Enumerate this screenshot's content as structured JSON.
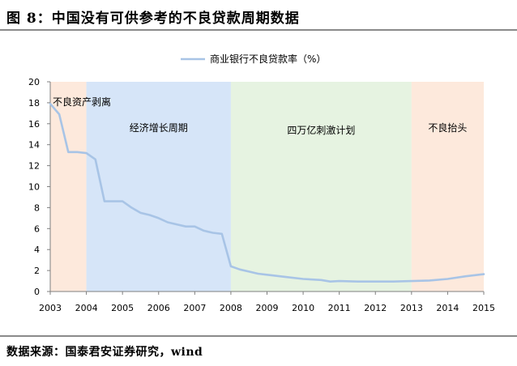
{
  "figure_title": "图 8：中国没有可供参考的不良贷款周期数据",
  "source_text": "数据来源：国泰君安证券研究，wind",
  "colors": {
    "line": "#a8c4e6",
    "band_orange": "#fde9dc",
    "band_blue": "#d6e5f8",
    "band_green": "#e6f3e1"
  },
  "chart_data": {
    "type": "line",
    "title": "",
    "xlabel": "",
    "ylabel": "",
    "x_ticks": [
      "2003",
      "2004",
      "2005",
      "2006",
      "2007",
      "2008",
      "2009",
      "2010",
      "2011",
      "2012",
      "2013",
      "2014",
      "2015"
    ],
    "y_ticks": [
      "0",
      "2",
      "4",
      "6",
      "8",
      "10",
      "12",
      "14",
      "16",
      "18",
      "20"
    ],
    "xlim": [
      2003,
      2015
    ],
    "ylim": [
      0,
      20
    ],
    "grid": false,
    "legend_position": "top-center",
    "series": [
      {
        "name": "商业银行不良贷款率（%）",
        "x": [
          2003.0,
          2003.25,
          2003.5,
          2003.75,
          2004.0,
          2004.25,
          2004.5,
          2004.75,
          2005.0,
          2005.25,
          2005.5,
          2005.75,
          2006.0,
          2006.25,
          2006.5,
          2006.75,
          2007.0,
          2007.25,
          2007.5,
          2007.75,
          2008.0,
          2008.25,
          2008.5,
          2008.75,
          2009.0,
          2009.5,
          2010.0,
          2010.5,
          2010.75,
          2011.0,
          2011.5,
          2012.0,
          2012.5,
          2013.0,
          2013.5,
          2014.0,
          2014.5,
          2015.0
        ],
        "values": [
          17.9,
          16.9,
          13.3,
          13.3,
          13.2,
          12.6,
          8.6,
          8.6,
          8.6,
          8.0,
          7.5,
          7.3,
          7.0,
          6.6,
          6.4,
          6.2,
          6.2,
          5.8,
          5.6,
          5.5,
          2.4,
          2.1,
          1.9,
          1.7,
          1.6,
          1.4,
          1.2,
          1.1,
          0.95,
          1.0,
          0.95,
          0.95,
          0.95,
          1.0,
          1.05,
          1.2,
          1.45,
          1.65
        ]
      }
    ],
    "regions": [
      {
        "label": "不良资产剥离",
        "x_start": 2003,
        "x_end": 2004,
        "color_key": "band_orange"
      },
      {
        "label": "经济增长周期",
        "x_start": 2004,
        "x_end": 2008,
        "color_key": "band_blue"
      },
      {
        "label": "四万亿刺激计划",
        "x_start": 2008,
        "x_end": 2013,
        "color_key": "band_green"
      },
      {
        "label": "不良抬头",
        "x_start": 2013,
        "x_end": 2015,
        "color_key": "band_orange"
      }
    ]
  }
}
